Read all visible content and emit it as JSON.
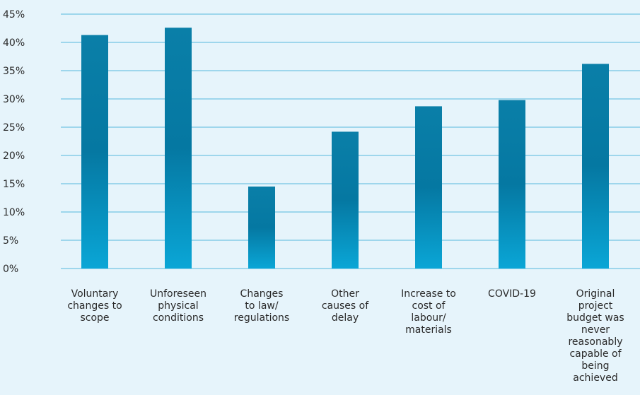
{
  "chart_data": {
    "type": "bar",
    "categories": [
      "Voluntary changes to scope",
      "Unforeseen physical conditions",
      "Changes to law/ regulations",
      "Other causes of delay",
      "Increase to cost of labour/ materials",
      "COVID-19",
      "Original project budget was never reasonably capable of being achieved"
    ],
    "category_lines": [
      [
        "Voluntary",
        "changes to",
        "scope"
      ],
      [
        "Unforeseen",
        "physical",
        "conditions"
      ],
      [
        "Changes",
        "to law/",
        "regulations"
      ],
      [
        "Other",
        "causes of",
        "delay"
      ],
      [
        "Increase to",
        "cost of",
        "labour/",
        "materials"
      ],
      [
        "COVID-19"
      ],
      [
        "Original",
        "project",
        "budget was",
        "never",
        "reasonably",
        "capable of",
        "being",
        "achieved"
      ]
    ],
    "values": [
      41.3,
      42.6,
      14.5,
      24.2,
      28.7,
      29.8,
      36.2
    ],
    "ylim": [
      0,
      45
    ],
    "yticks": [
      0,
      5,
      10,
      15,
      20,
      25,
      30,
      35,
      40,
      45
    ],
    "ytick_labels": [
      "0%",
      "5%",
      "10%",
      "15%",
      "20%",
      "25%",
      "30%",
      "35%",
      "40%",
      "45%"
    ],
    "grid": true,
    "title": "",
    "xlabel": "",
    "ylabel": "",
    "colors": {
      "bar_top": "#0a7fa8",
      "bar_mid": "#0578a2",
      "bar_bottom": "#0aa6d6",
      "grid": "#55b8dd",
      "background": "#e6f4fb",
      "text": "#2a2a2a"
    }
  }
}
